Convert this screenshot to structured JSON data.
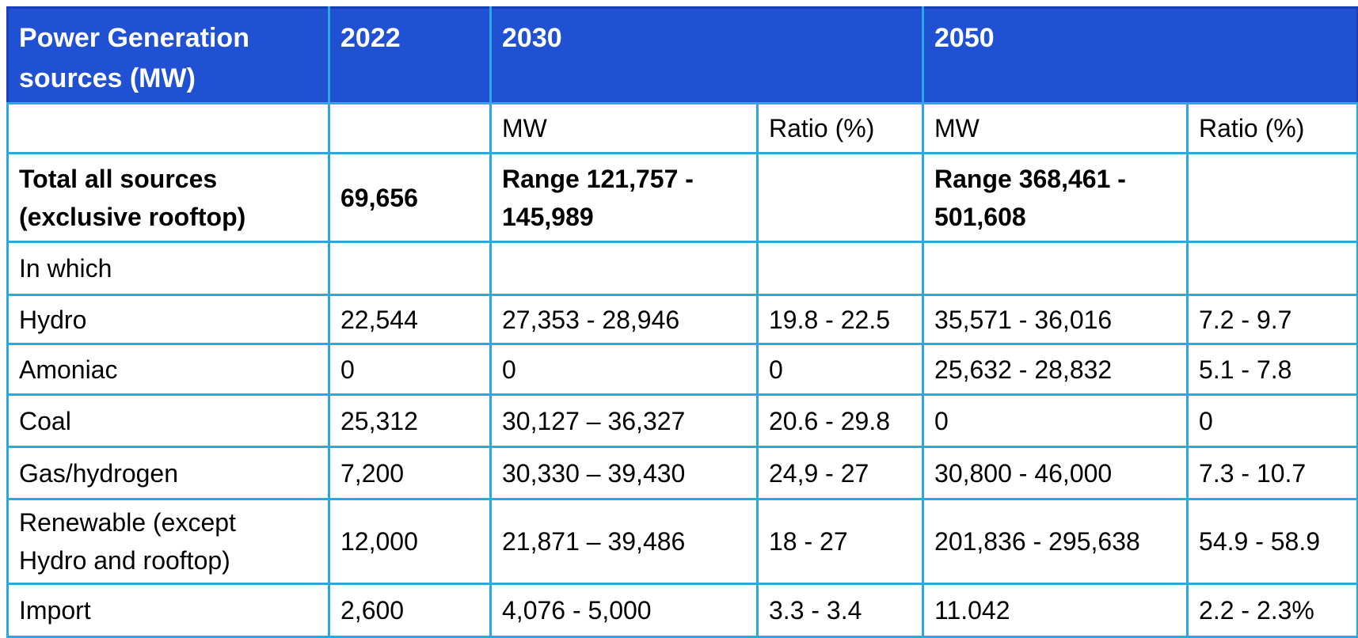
{
  "colors": {
    "header_bg": "#2151d3",
    "header_text": "#ffffff",
    "grid_line": "#29a9e0",
    "outer_top_line": "#1a3eb8",
    "body_text": "#000000"
  },
  "table": {
    "header": {
      "col_sources": "Power Generation\nsources (MW)",
      "col_2022": "2022",
      "col_2030": "2030",
      "col_2050": "2050"
    },
    "subheader": {
      "mw_2030": "MW",
      "ratio_2030": "Ratio (%)",
      "mw_2050": "MW",
      "ratio_2050": "Ratio (%)"
    },
    "rows": [
      {
        "name": "total",
        "cells": [
          "Total all sources\n(exclusive rooftop)",
          "69,656",
          "Range 121,757 -\n145,989",
          "",
          "Range 368,461 -\n501,608",
          ""
        ]
      },
      {
        "name": "in-which",
        "cells": [
          "In which",
          "",
          "",
          "",
          "",
          ""
        ]
      },
      {
        "name": "hydro",
        "cells": [
          "Hydro",
          "22,544",
          "27,353 - 28,946",
          "19.8 - 22.5",
          "35,571 - 36,016",
          "7.2 - 9.7"
        ]
      },
      {
        "name": "amoniac",
        "cells": [
          "Amoniac",
          "0",
          "0",
          "0",
          "25,632 - 28,832",
          "5.1 - 7.8"
        ]
      },
      {
        "name": "coal",
        "cells": [
          "Coal",
          "25,312",
          "30,127 – 36,327",
          "20.6 - 29.8",
          "0",
          "0"
        ]
      },
      {
        "name": "gas-hydrogen",
        "cells": [
          "Gas/hydrogen",
          "7,200",
          "30,330 – 39,430",
          "24,9 - 27",
          "30,800 - 46,000",
          "7.3 - 10.7"
        ]
      },
      {
        "name": "renewable",
        "cells": [
          "Renewable (except\nHydro and rooftop)",
          "12,000",
          "21,871 – 39,486",
          "18 - 27",
          "201,836 - 295,638",
          "54.9 - 58.9"
        ]
      },
      {
        "name": "import",
        "cells": [
          "Import",
          "2,600",
          "4,076 - 5,000",
          "3.3 - 3.4",
          "11.042",
          "2.2 - 2.3%"
        ]
      }
    ]
  }
}
